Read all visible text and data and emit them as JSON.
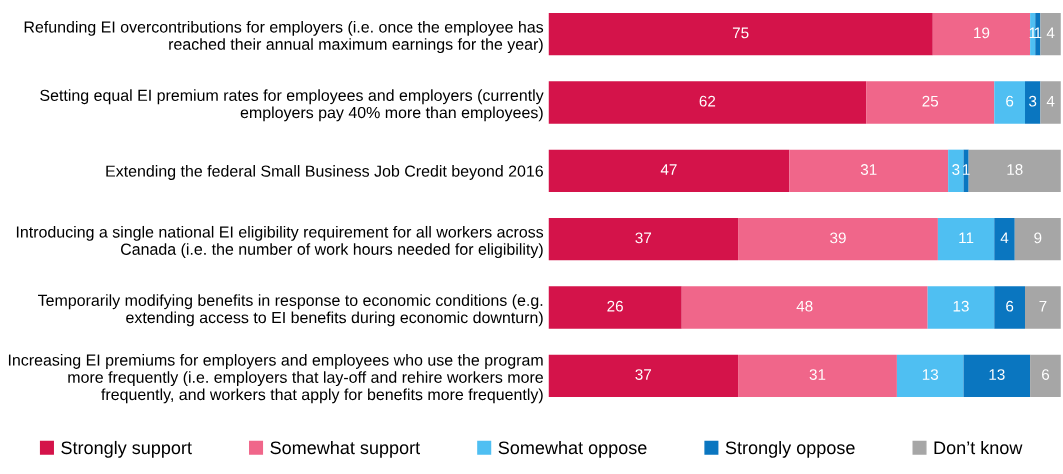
{
  "chart_data": {
    "type": "bar",
    "orientation": "horizontal",
    "stacked": true,
    "data_labels": true,
    "legend": "bottom",
    "grid": false,
    "tick_labels": "y",
    "xlim": [
      0,
      100
    ],
    "categories": [
      "Refunding EI overcontributions for employers (i.e. once the employee has\nreached their annual maximum earnings for the year)",
      "Setting equal EI premium rates for employees and employers (currently\nemployers pay 40% more than employees)",
      "Extending the federal Small Business Job Credit beyond 2016",
      "Introducing a single national EI eligibility requirement for all workers across\nCanada (i.e. the number of work hours needed for eligibility)",
      "Temporarily modifying benefits in response to economic conditions (e.g.\nextending access to EI benefits during economic downturn)",
      "Increasing EI premiums for employers and employees who use the program\nmore frequently (i.e. employers that lay-off and rehire workers more\nfrequently, and workers that apply for benefits more frequently)"
    ],
    "series": [
      {
        "name": "Strongly support",
        "color": "#d4134a",
        "values": [
          75,
          62,
          47,
          37,
          26,
          37
        ]
      },
      {
        "name": "Somewhat support",
        "color": "#f0668a",
        "values": [
          19,
          25,
          31,
          39,
          48,
          31
        ]
      },
      {
        "name": "Somewhat oppose",
        "color": "#4fbff2",
        "values": [
          1,
          6,
          3,
          11,
          13,
          13
        ]
      },
      {
        "name": "Strongly oppose",
        "color": "#0a76c0",
        "values": [
          1,
          3,
          1,
          4,
          6,
          13
        ]
      },
      {
        "name": "Don’t know",
        "color": "#a6a6a6",
        "values": [
          4,
          4,
          18,
          9,
          7,
          6
        ]
      }
    ]
  }
}
